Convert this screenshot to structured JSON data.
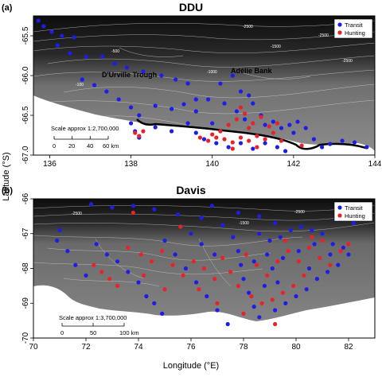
{
  "figure": {
    "xlabel": "Longitude (°E)",
    "ylabel": "Latitude (°S)"
  },
  "panels": [
    {
      "letter": "(a)",
      "title": "DDU",
      "x_ticks": [
        "136",
        "138",
        "140",
        "142",
        "144"
      ],
      "y_ticks": [
        "-65.5",
        "-66.0",
        "-66.5",
        "-67.0"
      ],
      "place_labels": [
        "D'Urville Trough",
        "Adélie Bank"
      ],
      "scale_title": "Scale approx 1:2,700,000",
      "scale_ticks": [
        "0",
        "20",
        "40",
        "60 km"
      ],
      "legend": [
        "Transit",
        "Hunting"
      ],
      "contour_labels": [
        "-2500",
        "-1500",
        "-2500",
        "-2500",
        "-1000",
        "-100",
        "-500"
      ]
    },
    {
      "letter": "(b)",
      "title": "Davis",
      "x_ticks": [
        "70",
        "72",
        "74",
        "76",
        "78",
        "80",
        "82"
      ],
      "y_ticks": [
        "-66",
        "-67",
        "-68",
        "-69",
        "-70"
      ],
      "scale_title": "Scale approx 1:3,700,000",
      "scale_ticks": [
        "0",
        "50",
        "100 km"
      ],
      "legend": [
        "Transit",
        "Hunting"
      ],
      "contour_labels": [
        "-2500",
        "-1500",
        "-2500"
      ]
    }
  ],
  "colors": {
    "transit": "#1d1de8",
    "hunting": "#e8222a",
    "deep_water": "#111111",
    "shelf": "#8e8e8e",
    "land": "#ffffff"
  },
  "chart_data": [
    {
      "type": "scatter",
      "title": "DDU",
      "xlabel": "",
      "ylabel": "",
      "xlim": [
        135.6,
        144
      ],
      "ylim": [
        -67.0,
        -65.25
      ],
      "series": [
        {
          "name": "Transit",
          "points": [
            [
              135.72,
              -65.31
            ],
            [
              135.85,
              -65.38
            ],
            [
              136.05,
              -65.45
            ],
            [
              136.3,
              -65.5
            ],
            [
              136.6,
              -65.52
            ],
            [
              136.2,
              -65.62
            ],
            [
              136.5,
              -65.72
            ],
            [
              136.9,
              -65.76
            ],
            [
              137.3,
              -65.76
            ],
            [
              137.6,
              -65.85
            ],
            [
              137.9,
              -65.9
            ],
            [
              138.3,
              -65.95
            ],
            [
              138.75,
              -66.0
            ],
            [
              139.1,
              -66.05
            ],
            [
              139.4,
              -66.1
            ],
            [
              136.8,
              -66.05
            ],
            [
              137.1,
              -66.12
            ],
            [
              137.4,
              -66.2
            ],
            [
              137.7,
              -66.3
            ],
            [
              138.0,
              -66.4
            ],
            [
              138.2,
              -66.5
            ],
            [
              138.6,
              -66.38
            ],
            [
              139.0,
              -66.42
            ],
            [
              139.3,
              -66.36
            ],
            [
              139.6,
              -66.3
            ],
            [
              138.0,
              -66.6
            ],
            [
              138.1,
              -66.7
            ],
            [
              138.2,
              -66.78
            ],
            [
              138.6,
              -66.65
            ],
            [
              139.0,
              -66.7
            ],
            [
              139.4,
              -66.6
            ],
            [
              139.6,
              -66.45
            ],
            [
              139.9,
              -66.3
            ],
            [
              140.2,
              -66.1
            ],
            [
              140.5,
              -66.0
            ],
            [
              140.7,
              -66.2
            ],
            [
              140.3,
              -66.35
            ],
            [
              140.6,
              -66.45
            ],
            [
              140.8,
              -66.55
            ],
            [
              141.0,
              -66.35
            ],
            [
              141.2,
              -66.5
            ],
            [
              141.3,
              -66.62
            ],
            [
              141.5,
              -66.58
            ],
            [
              141.7,
              -66.66
            ],
            [
              141.9,
              -66.62
            ],
            [
              142.1,
              -66.58
            ],
            [
              142.3,
              -66.66
            ],
            [
              142.5,
              -66.8
            ],
            [
              142.7,
              -66.9
            ],
            [
              142.9,
              -66.86
            ],
            [
              143.2,
              -66.82
            ],
            [
              143.5,
              -66.84
            ],
            [
              143.8,
              -66.9
            ],
            [
              139.8,
              -66.8
            ],
            [
              140.1,
              -66.85
            ],
            [
              140.4,
              -66.9
            ],
            [
              140.7,
              -66.85
            ],
            [
              141.0,
              -66.92
            ],
            [
              141.3,
              -66.85
            ],
            [
              141.6,
              -66.9
            ],
            [
              141.8,
              -66.95
            ],
            [
              142.0,
              -66.72
            ],
            [
              139.6,
              -66.72
            ],
            [
              140.0,
              -66.6
            ],
            [
              140.9,
              -66.25
            ]
          ]
        },
        {
          "name": "Hunting",
          "points": [
            [
              138.1,
              -66.72
            ],
            [
              138.2,
              -66.76
            ],
            [
              138.3,
              -66.7
            ],
            [
              139.7,
              -66.78
            ],
            [
              139.9,
              -66.82
            ],
            [
              140.1,
              -66.78
            ],
            [
              140.3,
              -66.8
            ],
            [
              140.5,
              -66.84
            ],
            [
              140.7,
              -66.78
            ],
            [
              140.9,
              -66.82
            ],
            [
              141.1,
              -66.76
            ],
            [
              141.3,
              -66.8
            ],
            [
              141.5,
              -66.72
            ],
            [
              141.7,
              -66.82
            ],
            [
              140.4,
              -66.62
            ],
            [
              140.6,
              -66.55
            ],
            [
              140.8,
              -66.48
            ],
            [
              141.0,
              -66.6
            ],
            [
              141.2,
              -66.52
            ],
            [
              140.2,
              -66.7
            ],
            [
              140.0,
              -66.74
            ],
            [
              141.4,
              -66.64
            ],
            [
              141.6,
              -66.6
            ],
            [
              142.2,
              -66.88
            ],
            [
              140.7,
              -66.4
            ],
            [
              140.9,
              -66.66
            ],
            [
              141.1,
              -66.9
            ],
            [
              140.5,
              -66.92
            ]
          ]
        }
      ]
    },
    {
      "type": "scatter",
      "title": "Davis",
      "xlabel": "Longitude (°E)",
      "ylabel": "",
      "xlim": [
        70,
        83
      ],
      "ylim": [
        -70,
        -66
      ],
      "series": [
        {
          "name": "Transit",
          "points": [
            [
              71.0,
              -66.9
            ],
            [
              70.9,
              -67.2
            ],
            [
              71.3,
              -67.5
            ],
            [
              71.6,
              -67.9
            ],
            [
              72.0,
              -68.2
            ],
            [
              72.4,
              -67.3
            ],
            [
              72.8,
              -67.6
            ],
            [
              73.2,
              -67.8
            ],
            [
              73.6,
              -68.1
            ],
            [
              74.0,
              -68.4
            ],
            [
              74.3,
              -68.8
            ],
            [
              74.6,
              -69.0
            ],
            [
              74.9,
              -69.3
            ],
            [
              73.8,
              -66.2
            ],
            [
              74.6,
              -66.3
            ],
            [
              75.5,
              -66.45
            ],
            [
              76.4,
              -66.55
            ],
            [
              77.2,
              -66.75
            ],
            [
              77.6,
              -67.1
            ],
            [
              77.8,
              -67.5
            ],
            [
              77.9,
              -67.9
            ],
            [
              78.0,
              -68.3
            ],
            [
              78.2,
              -68.7
            ],
            [
              78.4,
              -69.1
            ],
            [
              78.6,
              -69.4
            ],
            [
              75.0,
              -67.2
            ],
            [
              75.4,
              -67.6
            ],
            [
              75.8,
              -68.0
            ],
            [
              76.2,
              -68.4
            ],
            [
              76.6,
              -68.8
            ],
            [
              77.0,
              -69.2
            ],
            [
              77.4,
              -69.6
            ],
            [
              76.0,
              -67.0
            ],
            [
              76.4,
              -67.3
            ],
            [
              76.9,
              -67.6
            ],
            [
              78.6,
              -67.0
            ],
            [
              79.0,
              -67.2
            ],
            [
              79.4,
              -67.1
            ],
            [
              79.8,
              -66.9
            ],
            [
              80.2,
              -66.8
            ],
            [
              80.6,
              -66.9
            ],
            [
              81.0,
              -67.0
            ],
            [
              81.4,
              -67.3
            ],
            [
              81.8,
              -67.4
            ],
            [
              82.0,
              -67.6
            ],
            [
              81.6,
              -67.9
            ],
            [
              81.2,
              -68.1
            ],
            [
              80.8,
              -68.3
            ],
            [
              80.4,
              -68.6
            ],
            [
              80.0,
              -68.8
            ],
            [
              79.6,
              -69.0
            ],
            [
              79.2,
              -69.2
            ],
            [
              78.8,
              -68.5
            ],
            [
              79.1,
              -68.0
            ],
            [
              79.5,
              -67.7
            ],
            [
              80.1,
              -67.5
            ],
            [
              80.7,
              -67.3
            ],
            [
              81.3,
              -67.6
            ],
            [
              78.4,
              -67.8
            ],
            [
              78.9,
              -67.6
            ],
            [
              79.3,
              -68.4
            ],
            [
              80.5,
              -68.0
            ],
            [
              72.2,
              -66.15
            ],
            [
              73.0,
              -66.25
            ],
            [
              76.8,
              -66.2
            ],
            [
              77.8,
              -66.4
            ],
            [
              78.6,
              -66.5
            ],
            [
              79.2,
              -66.7
            ],
            [
              81.5,
              -66.6
            ],
            [
              82.2,
              -66.7
            ]
          ]
        },
        {
          "name": "Hunting",
          "points": [
            [
              72.3,
              -67.9
            ],
            [
              72.6,
              -68.1
            ],
            [
              72.9,
              -68.3
            ],
            [
              73.2,
              -68.5
            ],
            [
              73.6,
              -67.4
            ],
            [
              74.1,
              -67.6
            ],
            [
              74.5,
              -67.8
            ],
            [
              74.9,
              -67.5
            ],
            [
              75.3,
              -67.9
            ],
            [
              75.7,
              -68.2
            ],
            [
              76.1,
              -67.8
            ],
            [
              76.5,
              -68.0
            ],
            [
              76.9,
              -68.3
            ],
            [
              77.2,
              -67.7
            ],
            [
              77.5,
              -68.1
            ],
            [
              77.8,
              -68.5
            ],
            [
              78.1,
              -67.6
            ],
            [
              78.5,
              -67.9
            ],
            [
              78.9,
              -68.2
            ],
            [
              79.3,
              -67.8
            ],
            [
              79.7,
              -67.5
            ],
            [
              80.1,
              -67.8
            ],
            [
              80.5,
              -67.4
            ],
            [
              80.9,
              -67.7
            ],
            [
              81.3,
              -67.9
            ],
            [
              81.7,
              -67.5
            ],
            [
              80.3,
              -68.2
            ],
            [
              79.9,
              -68.5
            ],
            [
              79.5,
              -68.7
            ],
            [
              79.1,
              -68.9
            ],
            [
              78.7,
              -69.0
            ],
            [
              78.3,
              -68.8
            ],
            [
              81.0,
              -67.2
            ],
            [
              80.6,
              -67.1
            ],
            [
              74.2,
              -68.2
            ],
            [
              73.8,
              -66.4
            ],
            [
              75.6,
              -66.8
            ],
            [
              77.0,
              -69.0
            ],
            [
              78.0,
              -69.3
            ],
            [
              79.2,
              -69.6
            ],
            [
              75.0,
              -68.6
            ],
            [
              76.3,
              -68.6
            ],
            [
              82.0,
              -67.3
            ],
            [
              79.6,
              -67.2
            ]
          ]
        }
      ]
    }
  ]
}
